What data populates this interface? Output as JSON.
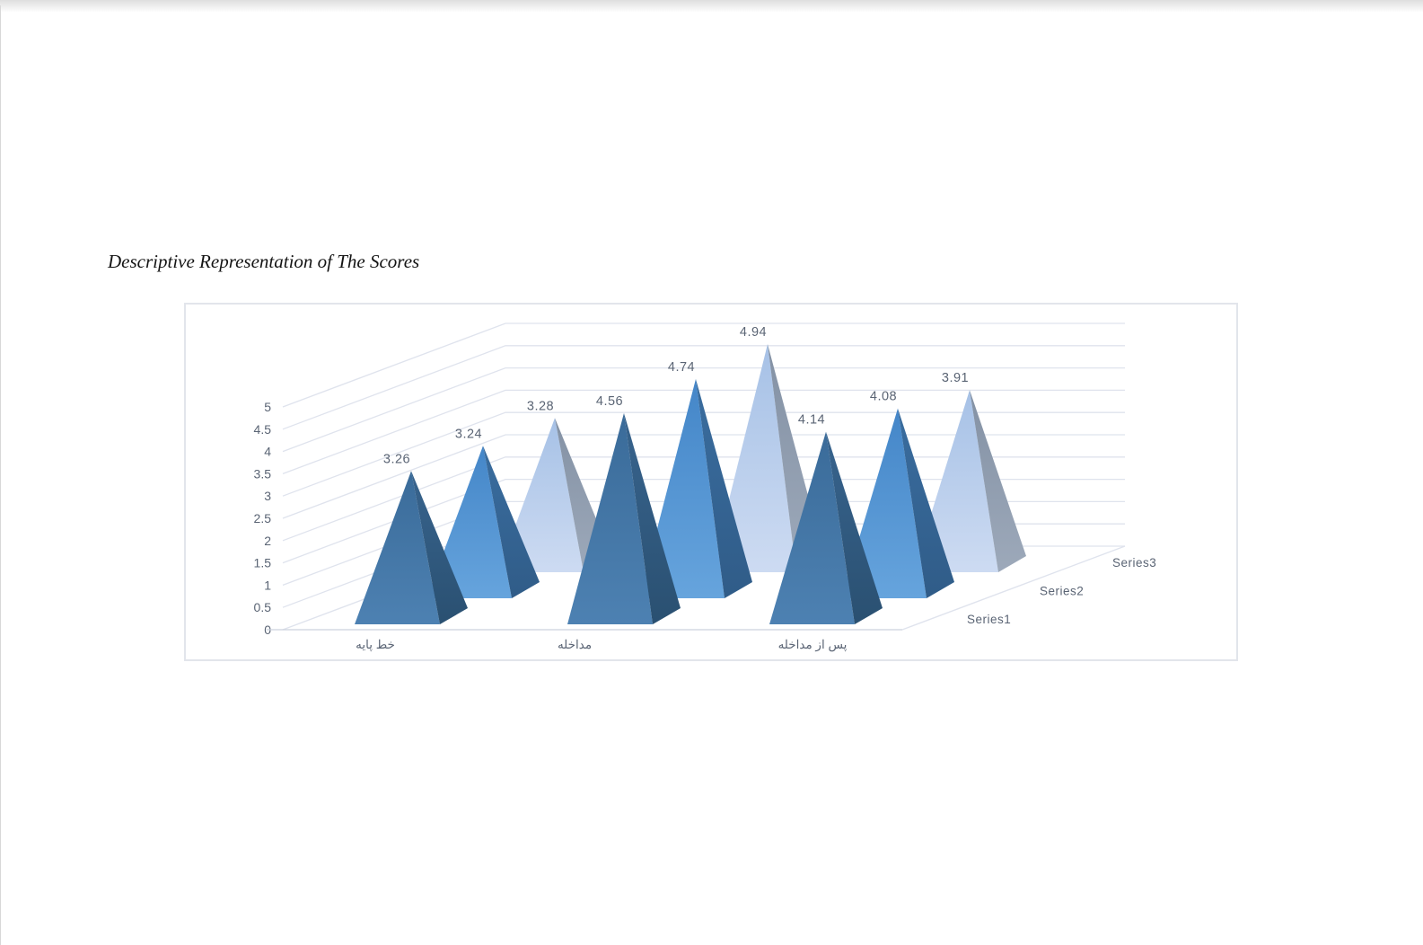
{
  "page": {
    "title": "Descriptive Representation of The Scores"
  },
  "chart_data": {
    "type": "bar",
    "shape": "pyramid-3d",
    "title": "",
    "xlabel": "",
    "ylabel": "",
    "categories": [
      "خط پایه",
      "مداخله",
      "پس از مداخله"
    ],
    "series": [
      {
        "name": "Series1",
        "values": [
          3.26,
          4.56,
          4.14
        ]
      },
      {
        "name": "Series2",
        "values": [
          3.24,
          4.74,
          4.08
        ]
      },
      {
        "name": "Series3",
        "values": [
          3.28,
          4.94,
          3.91
        ]
      }
    ],
    "data_labels": [
      [
        "3.26",
        "4.56",
        "4.14"
      ],
      [
        "3.24",
        "4.74",
        "4.08"
      ],
      [
        "3.28",
        "4.94",
        "3.91"
      ]
    ],
    "ylim": [
      0,
      5
    ],
    "ytick_labels": [
      "0",
      "0.5",
      "1",
      "1.5",
      "2",
      "2.5",
      "3",
      "3.5",
      "4",
      "4.5",
      "5"
    ],
    "grid": true,
    "legend_position": "depth-axis-floor",
    "colors": {
      "series_front_top": [
        "#3a6b99",
        "#4486c8",
        "#a6c1e6"
      ],
      "series_front_bottom": [
        "#4d81b2",
        "#66a4dd",
        "#cddbf2"
      ],
      "series_side_top": [
        "#38648e",
        "#3a6d9f",
        "#8391a4"
      ],
      "series_side_bottom": [
        "#2a5071",
        "#305c88",
        "#9da9ba"
      ],
      "grid": "#dfe3ed",
      "axis": "#ccd2dd",
      "text": "#5a6474",
      "chart_border": "#e2e5eb"
    }
  }
}
